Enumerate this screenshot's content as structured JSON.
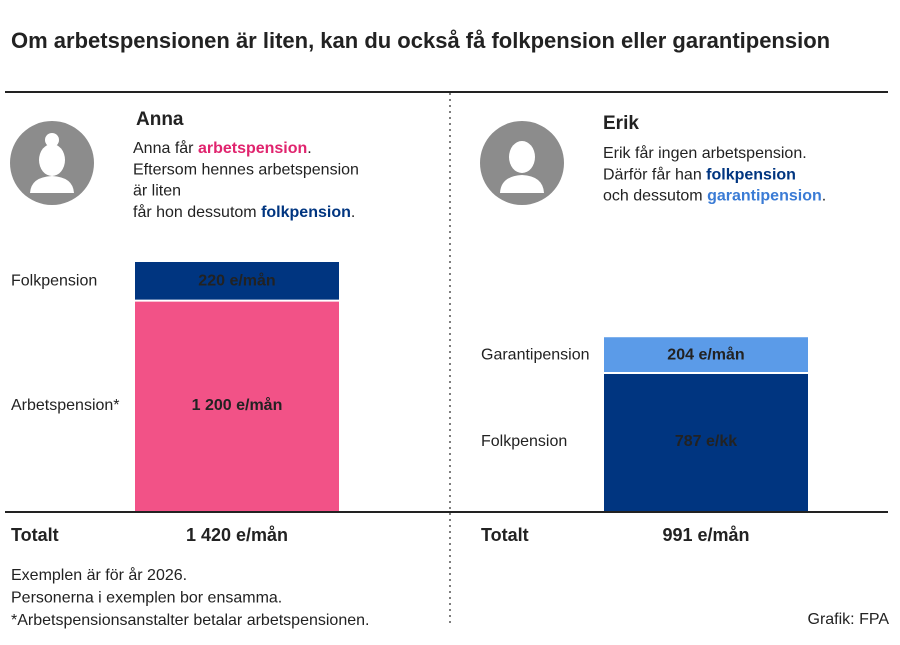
{
  "title": "Om arbetspensionen är liten, kan du också få folkpension eller garantipension",
  "panels": [
    {
      "name": "Anna",
      "description": [
        [
          {
            "text": "Anna får "
          },
          {
            "text": "arbetspension",
            "color": "#e0246e"
          },
          {
            "text": "."
          }
        ],
        [
          {
            "text": "Eftersom hennes arbetspension"
          }
        ],
        [
          {
            "text": "är liten"
          }
        ],
        [
          {
            "text": "får hon dessutom "
          },
          {
            "text": "folkpension",
            "color": "#003580"
          },
          {
            "text": "."
          }
        ]
      ],
      "segments": [
        {
          "name": "Arbetspension*",
          "value": 1200,
          "value_label": "1 200 e/mån",
          "color": "#f25287",
          "label_color": "#111111"
        },
        {
          "name": "Folkpension",
          "value": 220,
          "value_label": "220 e/mån",
          "color": "#003580",
          "label_color": "#ffffff"
        }
      ],
      "total_name": "Totalt",
      "total": "1 420 e/mån"
    },
    {
      "name": "Erik",
      "description": [
        [
          {
            "text": "Erik får ingen arbetspension."
          }
        ],
        [
          {
            "text": "Därför får han "
          },
          {
            "text": "folkpension",
            "color": "#003580"
          }
        ],
        [
          {
            "text": "och dessutom "
          },
          {
            "text": "garantipension",
            "color": "#3a7bd5"
          },
          {
            "text": "."
          }
        ]
      ],
      "segments": [
        {
          "name": "Folkpension",
          "value": 787,
          "value_label": "787 e/kk",
          "color": "#003580",
          "label_color": "#ffffff"
        },
        {
          "name": "Garantipension",
          "value": 204,
          "value_label": "204 e/mån",
          "color": "#5b9be8",
          "label_color": "#111111"
        }
      ],
      "total_name": "Totalt",
      "total": "991 e/mån"
    }
  ],
  "footnotes": [
    "Exemplen är för år 2026.",
    "Personerna i exemplen bor ensamma.",
    "*Arbetspensionsanstalter betalar arbetspensionen."
  ],
  "credit": "Grafik: FPA"
}
